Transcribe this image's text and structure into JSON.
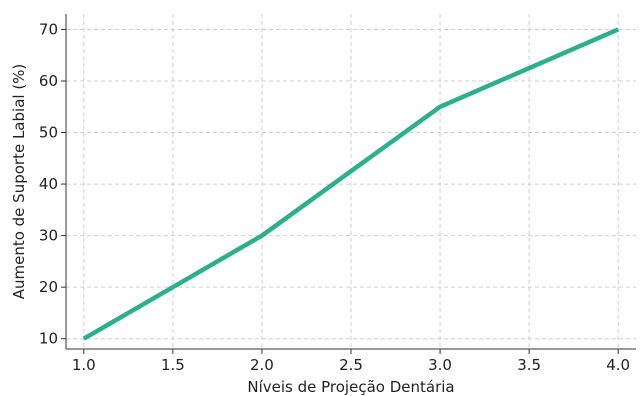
{
  "chart_data": {
    "type": "line",
    "title": "",
    "xlabel": "Níveis de Projeção Dentária",
    "ylabel": "Aumento de Suporte Labial (%)",
    "x": [
      1.0,
      2.0,
      3.0,
      4.0
    ],
    "series": [
      {
        "values": [
          10,
          30,
          55,
          70
        ],
        "color": "#2bb08a"
      }
    ],
    "xlim": [
      0.9,
      4.1
    ],
    "ylim": [
      8,
      73
    ],
    "xticks": [
      "1.0",
      "1.5",
      "2.0",
      "2.5",
      "3.0",
      "3.5",
      "4.0"
    ],
    "yticks": [
      "10",
      "20",
      "30",
      "40",
      "50",
      "60",
      "70"
    ],
    "grid": true
  }
}
